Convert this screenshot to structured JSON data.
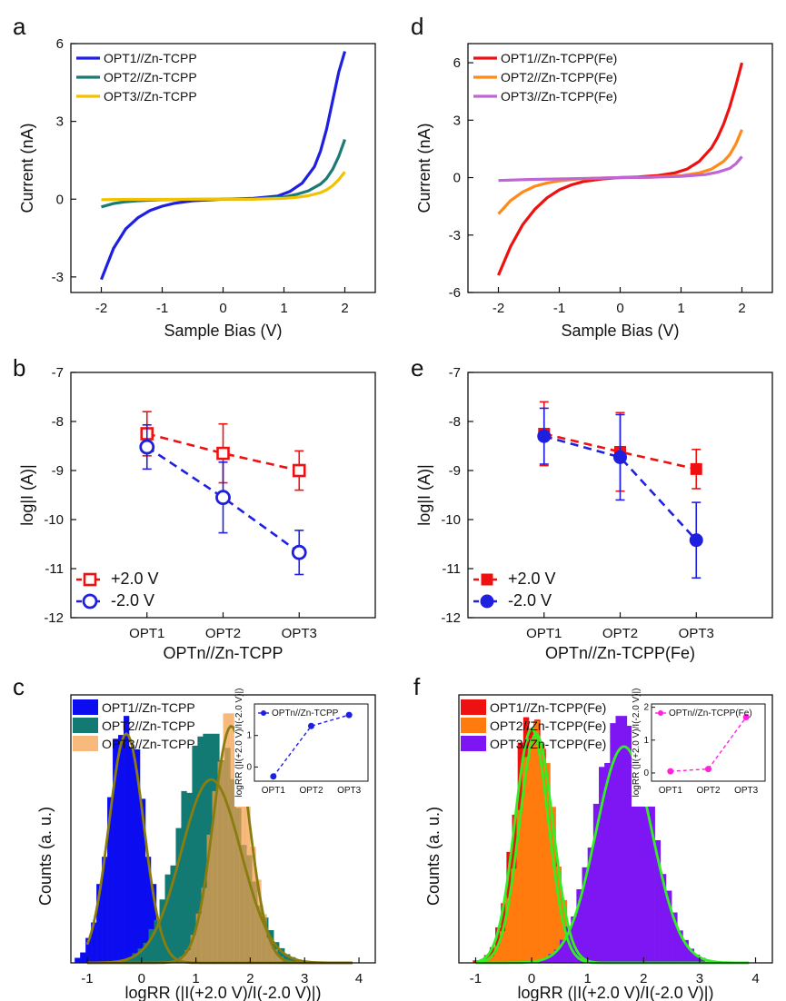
{
  "chart_data": [
    {
      "panel": "a",
      "type": "line",
      "xlabel": "Sample Bias (V)",
      "ylabel": "Current (nA)",
      "xlim": [
        -2.5,
        2.5
      ],
      "ylim": [
        -3.6,
        6
      ],
      "xticks": [
        -2,
        -1,
        0,
        1,
        2
      ],
      "yticks": [
        -3,
        0,
        3,
        6
      ],
      "legend_position": "top-left",
      "series": [
        {
          "name": "OPT1//Zn-TCPP",
          "color": "#1f1fe0",
          "x": [
            -2,
            -1.8,
            -1.6,
            -1.4,
            -1.2,
            -1,
            -0.8,
            -0.5,
            0,
            0.5,
            0.9,
            1.1,
            1.3,
            1.5,
            1.6,
            1.7,
            1.8,
            1.9,
            2
          ],
          "y": [
            -3.1,
            -1.9,
            -1.15,
            -0.72,
            -0.44,
            -0.27,
            -0.16,
            -0.06,
            0,
            0.03,
            0.12,
            0.3,
            0.62,
            1.25,
            1.85,
            2.7,
            3.8,
            4.9,
            5.7
          ]
        },
        {
          "name": "OPT2//Zn-TCPP",
          "color": "#1a7a74",
          "x": [
            -2,
            -1.8,
            -1.6,
            -1.4,
            -1.2,
            -1,
            -0.5,
            0,
            0.5,
            1,
            1.2,
            1.4,
            1.6,
            1.7,
            1.8,
            1.9,
            2
          ],
          "y": [
            -0.3,
            -0.17,
            -0.1,
            -0.06,
            -0.04,
            -0.02,
            -0.01,
            0,
            0.01,
            0.08,
            0.18,
            0.32,
            0.58,
            0.8,
            1.15,
            1.65,
            2.3
          ]
        },
        {
          "name": "OPT3//Zn-TCPP",
          "color": "#f2c200",
          "x": [
            -2,
            -1.5,
            -1,
            -0.5,
            0,
            0.5,
            1,
            1.2,
            1.4,
            1.6,
            1.7,
            1.8,
            1.9,
            2
          ],
          "y": [
            -0.02,
            -0.01,
            -0.01,
            0,
            0,
            0,
            0.03,
            0.07,
            0.13,
            0.25,
            0.36,
            0.52,
            0.75,
            1.05
          ]
        }
      ]
    },
    {
      "panel": "d",
      "type": "line",
      "xlabel": "Sample Bias (V)",
      "ylabel": "Current (nA)",
      "xlim": [
        -2.5,
        2.5
      ],
      "ylim": [
        -6,
        7
      ],
      "xticks": [
        -2,
        -1,
        0,
        1,
        2
      ],
      "yticks": [
        -6,
        -3,
        0,
        3,
        6
      ],
      "legend_position": "top-left",
      "series": [
        {
          "name": "OPT1//Zn-TCPP(Fe)",
          "color": "#ee1111",
          "x": [
            -2,
            -1.8,
            -1.6,
            -1.4,
            -1.2,
            -1,
            -0.8,
            -0.6,
            -0.3,
            0,
            0.3,
            0.6,
            0.9,
            1.1,
            1.3,
            1.5,
            1.6,
            1.7,
            1.8,
            1.9,
            2
          ],
          "y": [
            -5.1,
            -3.6,
            -2.45,
            -1.65,
            -1.05,
            -0.64,
            -0.38,
            -0.2,
            -0.07,
            0,
            0.04,
            0.1,
            0.25,
            0.45,
            0.85,
            1.55,
            2.1,
            2.8,
            3.7,
            4.8,
            6
          ]
        },
        {
          "name": "OPT2//Zn-TCPP(Fe)",
          "color": "#ff8a1a",
          "x": [
            -2,
            -1.8,
            -1.6,
            -1.4,
            -1.2,
            -1,
            -0.7,
            -0.3,
            0,
            0.5,
            1,
            1.3,
            1.5,
            1.7,
            1.8,
            1.9,
            2
          ],
          "y": [
            -1.9,
            -1.2,
            -0.75,
            -0.45,
            -0.28,
            -0.17,
            -0.07,
            -0.02,
            0,
            0.02,
            0.1,
            0.25,
            0.45,
            0.85,
            1.2,
            1.75,
            2.5
          ]
        },
        {
          "name": "OPT3//Zn-TCPP(Fe)",
          "color": "#c066d4",
          "x": [
            -2,
            -1.5,
            -1,
            -0.5,
            0,
            0.5,
            1,
            1.4,
            1.6,
            1.8,
            1.9,
            2
          ],
          "y": [
            -0.15,
            -0.1,
            -0.07,
            -0.04,
            0,
            0.02,
            0.07,
            0.16,
            0.28,
            0.48,
            0.72,
            1.1
          ]
        }
      ]
    },
    {
      "panel": "b",
      "type": "scatter",
      "xlabel": "OPTn//Zn-TCPP",
      "ylabel": "log|I (A)|",
      "categories": [
        "OPT1",
        "OPT2",
        "OPT3"
      ],
      "ylim": [
        -12,
        -7
      ],
      "yticks": [
        -12,
        -11,
        -10,
        -9,
        -8,
        -7
      ],
      "legend_position": "bottom-left",
      "series": [
        {
          "name": "+2.0 V",
          "color": "#ee1111",
          "marker": "open-square",
          "values": [
            -8.25,
            -8.65,
            -9.0
          ],
          "err": [
            0.45,
            0.6,
            0.4
          ]
        },
        {
          "name": "-2.0 V",
          "color": "#1f1fe0",
          "marker": "open-circle",
          "values": [
            -8.52,
            -9.55,
            -10.67
          ],
          "err": [
            0.45,
            0.72,
            0.45
          ]
        }
      ]
    },
    {
      "panel": "e",
      "type": "scatter",
      "xlabel": "OPTn//Zn-TCPP(Fe)",
      "ylabel": "log|I (A)|",
      "categories": [
        "OPT1",
        "OPT2",
        "OPT3"
      ],
      "ylim": [
        -12,
        -7
      ],
      "yticks": [
        -12,
        -11,
        -10,
        -9,
        -8,
        -7
      ],
      "legend_position": "bottom-left",
      "series": [
        {
          "name": "+2.0 V",
          "color": "#ee1111",
          "marker": "filled-square",
          "values": [
            -8.25,
            -8.62,
            -8.97
          ],
          "err": [
            0.65,
            0.8,
            0.4
          ]
        },
        {
          "name": "-2.0 V",
          "color": "#1f1fe0",
          "marker": "filled-circle",
          "values": [
            -8.3,
            -8.73,
            -10.42
          ],
          "err": [
            0.57,
            0.87,
            0.77
          ]
        }
      ]
    },
    {
      "panel": "c",
      "type": "histogram",
      "xlabel": "logRR (|I(+2.0 V)/I(-2.0 V)|)",
      "ylabel": "Counts (a. u.)",
      "xlim": [
        -1.3,
        4.3
      ],
      "ylim": [
        0,
        1
      ],
      "xticks": [
        -1,
        0,
        1,
        2,
        3,
        4
      ],
      "bin_width": 0.1,
      "fit_color": "#8a7d10",
      "legend_position": "top-left",
      "series": [
        {
          "name": "OPT1//Zn-TCPP",
          "color": "#0c0cf0",
          "opacity": 1.0,
          "center": -0.28,
          "sigma": 0.32,
          "peak": 0.97,
          "gauss_peak": 0.9,
          "n_bins": 19,
          "noise": [
            0.06,
            -0.04,
            0.1,
            -0.05,
            0.08,
            -0.06,
            0.04,
            0.1,
            -0.03,
            0.07,
            -0.08,
            0.05,
            0.03,
            -0.06,
            0.08,
            -0.02,
            0.06,
            -0.05,
            0.04
          ]
        },
        {
          "name": "OPT2//Zn-TCPP",
          "color": "#127a72",
          "opacity": 1.0,
          "center": 1.28,
          "sigma": 0.55,
          "peak": 0.9,
          "gauss_peak": 0.72,
          "n_bins": 33,
          "noise": [
            0.04,
            -0.03,
            0.07,
            0.02,
            -0.05,
            0.08,
            -0.02,
            0.05,
            0.1,
            -0.04,
            0.06,
            0.12,
            -0.03,
            0.09,
            0.05,
            0.14,
            0.22,
            0.1,
            -0.05,
            0.08,
            0.04,
            0.02,
            -0.06,
            0.05,
            0.02,
            -0.04,
            0.03,
            0.05,
            -0.02,
            0.04,
            -0.03,
            0.02,
            0.01
          ]
        },
        {
          "name": "OPT3//Zn-TCPP",
          "color": "#f5a04a",
          "opacity": 0.72,
          "center": 1.65,
          "sigma": 0.33,
          "peak": 0.98,
          "gauss_peak": 0.93,
          "n_bins": 19,
          "noise": [
            0.05,
            -0.04,
            0.06,
            0.03,
            -0.05,
            0.07,
            0.04,
            -0.03,
            0.08,
            0.05,
            -0.06,
            0.04,
            0.06,
            -0.03,
            0.05,
            0.02,
            -0.04,
            0.03,
            0.02
          ]
        }
      ],
      "inset": {
        "type": "line",
        "legend": "OPTn//Zn-TCPP",
        "ylabel": "logRR (|I(+2.0 V)/I(-2.0 V)|)",
        "categories": [
          "OPT1",
          "OPT2",
          "OPT3"
        ],
        "values": [
          -0.3,
          1.3,
          1.65
        ],
        "ylim": [
          -0.45,
          2.0
        ],
        "yticks": [
          0,
          1
        ],
        "color": "#1f1fe0"
      }
    },
    {
      "panel": "f",
      "type": "histogram",
      "xlabel": "logRR (|I(+2.0 V)/I(-2.0 V)|)",
      "ylabel": "Counts (a. u.)",
      "xlim": [
        -1.3,
        4.3
      ],
      "ylim": [
        0,
        1
      ],
      "xticks": [
        -1,
        0,
        1,
        2,
        3,
        4
      ],
      "bin_width": 0.1,
      "fit_color": "#33ee22",
      "legend_position": "top-left",
      "series": [
        {
          "name": "OPT1//Zn-TCPP(Fe)",
          "color": "#ee1111",
          "opacity": 1.0,
          "center": 0.0,
          "sigma": 0.3,
          "peak": 0.98,
          "gauss_peak": 0.92,
          "n_bins": 21,
          "noise": [
            0.07,
            -0.03,
            0.09,
            -0.05,
            0.05,
            -0.04,
            0.08,
            -0.02,
            0.1,
            0.04,
            -0.06,
            0.03,
            0.07,
            -0.04,
            0.05,
            0.03,
            -0.05,
            0.06,
            0.02,
            -0.03,
            0.04
          ]
        },
        {
          "name": "OPT2//Zn-TCPP(Fe)",
          "color": "#ff7b0d",
          "opacity": 1.0,
          "center": 0.08,
          "sigma": 0.3,
          "peak": 0.95,
          "gauss_peak": 0.9,
          "n_bins": 19,
          "noise": [
            0.05,
            -0.04,
            0.06,
            -0.03,
            0.07,
            -0.05,
            0.04,
            0.06,
            -0.02,
            0.05,
            -0.04,
            0.03,
            0.06,
            -0.03,
            0.04,
            0.02,
            -0.04,
            0.03,
            0.02
          ]
        },
        {
          "name": "OPT3//Zn-TCPP(Fe)",
          "color": "#7d16f2",
          "opacity": 1.0,
          "center": 1.65,
          "sigma": 0.5,
          "peak": 0.97,
          "gauss_peak": 0.85,
          "n_bins": 30,
          "noise": [
            0.04,
            -0.03,
            0.06,
            -0.04,
            0.05,
            0.08,
            -0.05,
            0.07,
            0.03,
            -0.04,
            0.06,
            0.09,
            -0.03,
            0.05,
            0.04,
            0.1,
            -0.02,
            0.06,
            0.03,
            -0.05,
            0.07,
            0.02,
            -0.04,
            0.05,
            0.03,
            -0.03,
            0.04,
            0.02,
            -0.02,
            0.03
          ]
        }
      ],
      "inset": {
        "type": "line",
        "legend": "OPTn//Zn-TCPP(Fe)",
        "ylabel": "logRR (|I(+2.0 V)/I(-2.0 V)|)",
        "categories": [
          "OPT1",
          "OPT2",
          "OPT3"
        ],
        "values": [
          0.05,
          0.12,
          1.7
        ],
        "ylim": [
          -0.25,
          2.1
        ],
        "yticks": [
          0,
          1,
          2
        ],
        "color": "#ff22dd"
      }
    }
  ],
  "panel_letters": {
    "a": "a",
    "b": "b",
    "c": "c",
    "d": "d",
    "e": "e",
    "f": "f"
  }
}
